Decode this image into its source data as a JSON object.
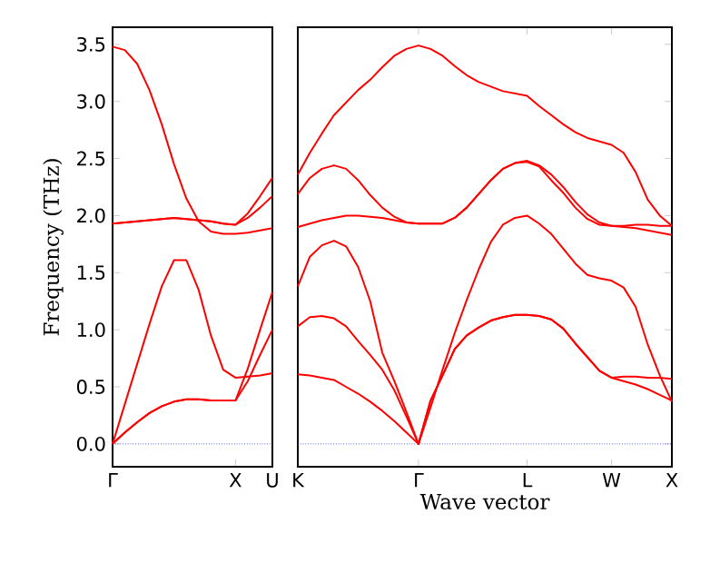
{
  "chart_data": [
    {
      "type": "line",
      "ylabel": "Frequency (THz)",
      "categories": [
        "Γ",
        null,
        null,
        null,
        null,
        null,
        null,
        null,
        null,
        null,
        "X",
        null,
        null,
        "U"
      ],
      "ylim": [
        -0.2,
        3.65
      ],
      "yticks": [
        {
          "value": 0,
          "label": "0.0"
        },
        0.5,
        {
          "value": 1,
          "label": "1.0"
        },
        1.5,
        {
          "value": 2,
          "label": "2.0"
        },
        2.5,
        {
          "value": 3,
          "label": "3.0"
        },
        3.5
      ],
      "ref_lines": [
        {
          "axis": "y",
          "value": 0,
          "color": "#0000ff",
          "line_style": "dotted"
        }
      ],
      "series": [
        {
          "color": "#ff0000",
          "values": [
            0,
            0.1,
            0.19,
            0.27,
            0.33,
            0.37,
            0.39,
            0.39,
            0.38,
            0.38,
            0.38,
            0.55,
            0.78,
            1.0
          ]
        },
        {
          "color": "#ff0000",
          "values": [
            0,
            0.1,
            0.19,
            0.27,
            0.33,
            0.37,
            0.39,
            0.39,
            0.38,
            0.38,
            0.38,
            0.66,
            1.0,
            1.33
          ]
        },
        {
          "color": "#ff0000",
          "values": [
            0,
            0.35,
            0.7,
            1.05,
            1.38,
            1.61,
            1.61,
            1.35,
            0.95,
            0.65,
            0.58,
            0.59,
            0.6,
            0.62
          ]
        },
        {
          "color": "#ff0000",
          "values": [
            1.93,
            1.94,
            1.95,
            1.96,
            1.97,
            1.98,
            1.97,
            1.96,
            1.95,
            1.93,
            1.92,
            1.98,
            2.07,
            2.17
          ]
        },
        {
          "color": "#ff0000",
          "values": [
            1.93,
            1.94,
            1.95,
            1.96,
            1.97,
            1.98,
            1.97,
            1.96,
            1.95,
            1.93,
            1.92,
            2.02,
            2.17,
            2.33
          ]
        },
        {
          "color": "#ff0000",
          "values": [
            3.48,
            3.45,
            3.33,
            3.1,
            2.8,
            2.45,
            2.15,
            1.95,
            1.86,
            1.84,
            1.84,
            1.85,
            1.87,
            1.89
          ]
        }
      ]
    },
    {
      "type": "line",
      "xlabel": "Wave vector",
      "tick_labels": "x",
      "categories": [
        "K",
        null,
        null,
        null,
        null,
        null,
        null,
        null,
        null,
        null,
        "Γ",
        null,
        null,
        null,
        null,
        null,
        null,
        null,
        null,
        "L",
        null,
        null,
        null,
        null,
        null,
        null,
        "W",
        null,
        null,
        null,
        null,
        "X"
      ],
      "ylim": [
        -0.2,
        3.65
      ],
      "yticks": [
        0,
        0.5,
        1,
        1.5,
        2,
        2.5,
        3,
        3.5
      ],
      "ref_lines": [
        {
          "axis": "y",
          "value": 0,
          "color": "#0000ff",
          "line_style": "dotted"
        }
      ],
      "series": [
        {
          "color": "#ff0000",
          "values": [
            2.36,
            2.55,
            2.72,
            2.88,
            2.99,
            3.1,
            3.19,
            3.3,
            3.4,
            3.46,
            3.49,
            3.46,
            3.4,
            3.31,
            3.23,
            3.17,
            3.13,
            3.09,
            3.07,
            3.05,
            2.96,
            2.88,
            2.8,
            2.73,
            2.68,
            2.65,
            2.62,
            2.55,
            2.38,
            2.14,
            2.0,
            1.91
          ]
        },
        {
          "color": "#ff0000",
          "values": [
            2.19,
            2.33,
            2.41,
            2.44,
            2.41,
            2.31,
            2.18,
            2.07,
            1.99,
            1.94,
            1.93,
            1.93,
            1.93,
            1.98,
            2.07,
            2.19,
            2.31,
            2.41,
            2.46,
            2.48,
            2.44,
            2.36,
            2.25,
            2.12,
            2.01,
            1.94,
            1.91,
            1.91,
            1.92,
            1.92,
            1.91,
            1.91
          ]
        },
        {
          "color": "#ff0000",
          "values": [
            1.9,
            1.93,
            1.96,
            1.98,
            2.0,
            2.0,
            1.99,
            1.98,
            1.96,
            1.94,
            1.93,
            1.93,
            1.93,
            1.98,
            2.07,
            2.19,
            2.31,
            2.41,
            2.46,
            2.47,
            2.43,
            2.31,
            2.2,
            2.07,
            1.97,
            1.92,
            1.91,
            1.9,
            1.89,
            1.87,
            1.85,
            1.83
          ]
        },
        {
          "color": "#ff0000",
          "values": [
            1.38,
            1.64,
            1.74,
            1.78,
            1.73,
            1.55,
            1.25,
            0.8,
            0.55,
            0.28,
            0,
            0.32,
            0.65,
            0.97,
            1.26,
            1.53,
            1.77,
            1.92,
            1.98,
            2.0,
            1.93,
            1.84,
            1.71,
            1.58,
            1.48,
            1.45,
            1.43,
            1.37,
            1.2,
            0.87,
            0.6,
            0.37
          ]
        },
        {
          "color": "#ff0000",
          "values": [
            1.03,
            1.11,
            1.12,
            1.1,
            1.03,
            0.9,
            0.78,
            0.65,
            0.47,
            0.24,
            0,
            0.38,
            0.6,
            0.83,
            0.95,
            1.02,
            1.08,
            1.11,
            1.13,
            1.13,
            1.12,
            1.09,
            1.01,
            0.88,
            0.76,
            0.64,
            0.58,
            0.59,
            0.59,
            0.58,
            0.58,
            0.57
          ]
        },
        {
          "color": "#ff0000",
          "values": [
            0.61,
            0.6,
            0.58,
            0.56,
            0.5,
            0.44,
            0.37,
            0.29,
            0.2,
            0.1,
            0,
            0.38,
            0.6,
            0.83,
            0.95,
            1.02,
            1.08,
            1.11,
            1.13,
            1.13,
            1.12,
            1.09,
            1.01,
            0.88,
            0.76,
            0.64,
            0.58,
            0.55,
            0.52,
            0.48,
            0.43,
            0.38
          ]
        }
      ]
    }
  ]
}
